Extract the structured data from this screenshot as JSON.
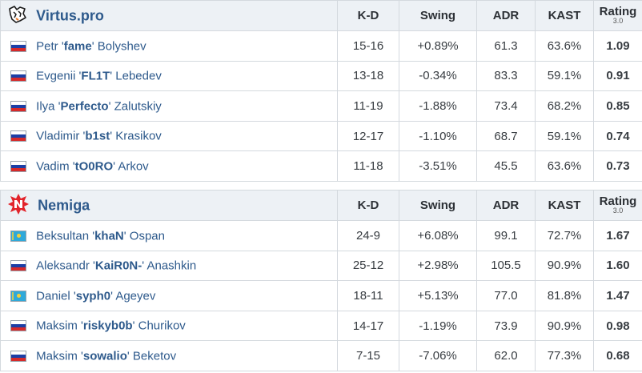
{
  "columns": {
    "kd": "K-D",
    "swing": "Swing",
    "adr": "ADR",
    "kast": "KAST",
    "rating": "Rating",
    "rating_version": "3.0"
  },
  "colors": {
    "link_blue": "#2e5a8c",
    "positive_green": "#2fa62f",
    "negative_red": "#d62323",
    "neutral_dark": "#2d3136",
    "header_bg": "#edf1f5"
  },
  "teams": [
    {
      "name": "Virtus.pro",
      "logo_icon": "virtus-pro-bear-logo",
      "players": [
        {
          "flag": "russia-flag-icon",
          "first": "Petr",
          "nick": "fame",
          "last": "Bolyshev",
          "kd": "15-16",
          "swing": "+0.89%",
          "adr": "61.3",
          "kast": "63.6%",
          "rating": "1.09"
        },
        {
          "flag": "russia-flag-icon",
          "first": "Evgenii",
          "nick": "FL1T",
          "last": "Lebedev",
          "kd": "13-18",
          "swing": "-0.34%",
          "adr": "83.3",
          "kast": "59.1%",
          "rating": "0.91"
        },
        {
          "flag": "russia-flag-icon",
          "first": "Ilya",
          "nick": "Perfecto",
          "last": "Zalutskiy",
          "kd": "11-19",
          "swing": "-1.88%",
          "adr": "73.4",
          "kast": "68.2%",
          "rating": "0.85"
        },
        {
          "flag": "russia-flag-icon",
          "first": "Vladimir",
          "nick": "b1st",
          "last": "Krasikov",
          "kd": "12-17",
          "swing": "-1.10%",
          "adr": "68.7",
          "kast": "59.1%",
          "rating": "0.74"
        },
        {
          "flag": "russia-flag-icon",
          "first": "Vadim",
          "nick": "tO0RO",
          "last": "Arkov",
          "kd": "11-18",
          "swing": "-3.51%",
          "adr": "45.5",
          "kast": "63.6%",
          "rating": "0.73"
        }
      ]
    },
    {
      "name": "Nemiga",
      "logo_icon": "nemiga-n-logo",
      "players": [
        {
          "flag": "kazakhstan-flag-icon",
          "first": "Beksultan",
          "nick": "khaN",
          "last": "Ospan",
          "kd": "24-9",
          "swing": "+6.08%",
          "adr": "99.1",
          "kast": "72.7%",
          "rating": "1.67"
        },
        {
          "flag": "russia-flag-icon",
          "first": "Aleksandr",
          "nick": "KaiR0N-",
          "last": "Anashkin",
          "kd": "25-12",
          "swing": "+2.98%",
          "adr": "105.5",
          "kast": "90.9%",
          "rating": "1.60"
        },
        {
          "flag": "kazakhstan-flag-icon",
          "first": "Daniel",
          "nick": "syph0",
          "last": "Ageyev",
          "kd": "18-11",
          "swing": "+5.13%",
          "adr": "77.0",
          "kast": "81.8%",
          "rating": "1.47"
        },
        {
          "flag": "russia-flag-icon",
          "first": "Maksim",
          "nick": "riskyb0b",
          "last": "Churikov",
          "kd": "14-17",
          "swing": "-1.19%",
          "adr": "73.9",
          "kast": "90.9%",
          "rating": "0.98"
        },
        {
          "flag": "russia-flag-icon",
          "first": "Maksim",
          "nick": "sowalio",
          "last": "Beketov",
          "kd": "7-15",
          "swing": "-7.06%",
          "adr": "62.0",
          "kast": "77.3%",
          "rating": "0.68"
        }
      ]
    }
  ]
}
